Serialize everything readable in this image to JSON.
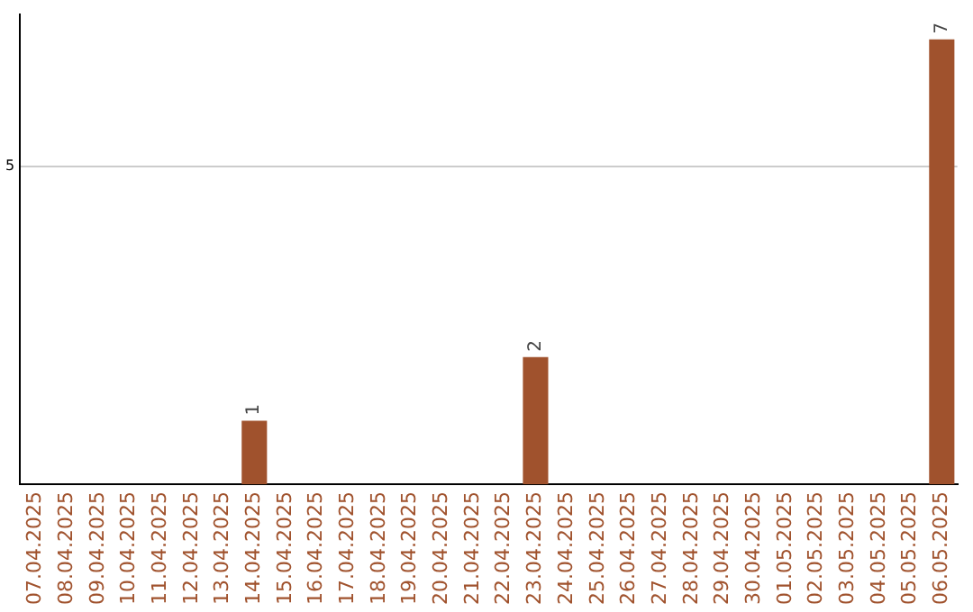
{
  "chart_data": {
    "type": "bar",
    "categories": [
      "07.04.2025",
      "08.04.2025",
      "09.04.2025",
      "10.04.2025",
      "11.04.2025",
      "12.04.2025",
      "13.04.2025",
      "14.04.2025",
      "15.04.2025",
      "16.04.2025",
      "17.04.2025",
      "18.04.2025",
      "19.04.2025",
      "20.04.2025",
      "21.04.2025",
      "22.04.2025",
      "23.04.2025",
      "24.04.2025",
      "25.04.2025",
      "26.04.2025",
      "27.04.2025",
      "28.04.2025",
      "29.04.2025",
      "30.04.2025",
      "01.05.2025",
      "02.05.2025",
      "03.05.2025",
      "04.05.2025",
      "05.05.2025",
      "06.05.2025"
    ],
    "values": [
      null,
      null,
      null,
      null,
      null,
      null,
      null,
      1,
      null,
      null,
      null,
      null,
      null,
      null,
      null,
      null,
      2,
      null,
      null,
      null,
      null,
      null,
      null,
      null,
      null,
      null,
      null,
      null,
      null,
      7
    ],
    "color": "#a0522d",
    "ylim": [
      0,
      7.4
    ],
    "yticks": [
      5
    ],
    "grid": "y",
    "legend": false,
    "data_labels": true
  }
}
